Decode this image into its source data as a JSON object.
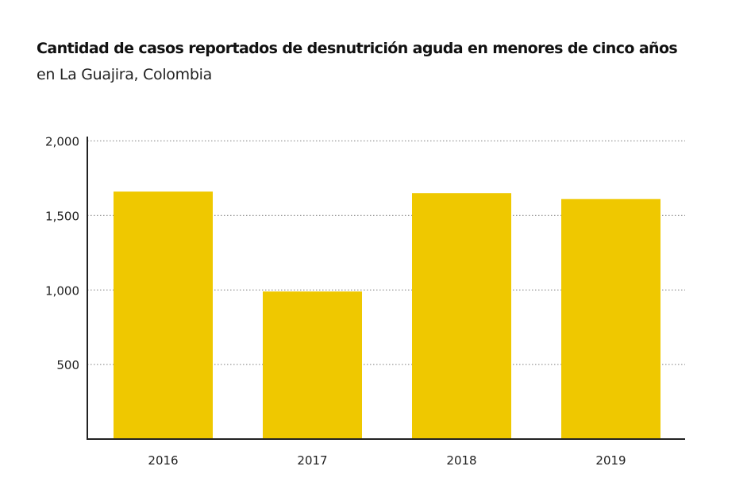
{
  "chart_data": {
    "type": "bar",
    "title": "Cantidad de casos reportados de desnutrición aguda en menores de cinco años",
    "subtitle": "en La Guajira, Colombia",
    "categories": [
      "2016",
      "2017",
      "2018",
      "2019"
    ],
    "values": [
      1660,
      990,
      1650,
      1610
    ],
    "xlabel": "",
    "ylabel": "",
    "ylim": [
      0,
      2000
    ],
    "yticks": [
      500,
      1000,
      1500,
      2000
    ],
    "ytick_labels": [
      "500",
      "1,000",
      "1,500",
      "2,000"
    ],
    "grid": "horizontal dotted",
    "bar_color": "#EFC800"
  }
}
